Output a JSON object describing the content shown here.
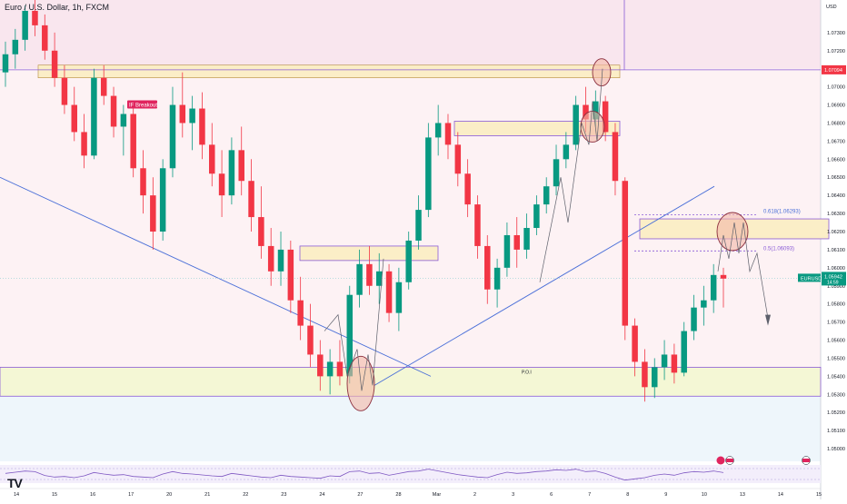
{
  "chart_data": {
    "type": "candlestick",
    "title": "Euro / U.S. Dollar, 1h, FXCM",
    "currency": "USD",
    "symbol_tag": "EURUSD",
    "current_price": "1.05942",
    "countdown": "14:59",
    "level_tag": "1.07094",
    "y_ticks": [
      "1.07300",
      "1.07200",
      "1.07100",
      "1.07000",
      "1.06900",
      "1.06800",
      "1.06700",
      "1.06600",
      "1.06500",
      "1.06400",
      "1.06300",
      "1.06200",
      "1.06100",
      "1.06000",
      "1.05900",
      "1.05800",
      "1.05700",
      "1.05600",
      "1.05500",
      "1.05400",
      "1.05300",
      "1.05200",
      "1.05100",
      "1.05000"
    ],
    "x_ticks": [
      "14",
      "15",
      "16",
      "17",
      "20",
      "21",
      "22",
      "23",
      "24",
      "27",
      "28",
      "Mar",
      "2",
      "3",
      "6",
      "7",
      "8",
      "9",
      "10",
      "13",
      "14",
      "15"
    ],
    "ylim": [
      1.0493,
      1.0748
    ],
    "annotations": {
      "breakout": "IF Breakout",
      "poi": "P.O.I",
      "fib_618": "0.618(1.06293)",
      "fib_05": "0.5(1.06093)"
    },
    "candles": [
      [
        0,
        1.0708,
        1.0725,
        1.07,
        1.0718
      ],
      [
        1,
        1.0718,
        1.0732,
        1.071,
        1.0726
      ],
      [
        2,
        1.0726,
        1.0745,
        1.072,
        1.0742
      ],
      [
        3,
        1.0742,
        1.0748,
        1.0728,
        1.0734
      ],
      [
        4,
        1.0734,
        1.074,
        1.0715,
        1.072
      ],
      [
        5,
        1.072,
        1.073,
        1.07,
        1.0705
      ],
      [
        6,
        1.0705,
        1.0712,
        1.0685,
        1.069
      ],
      [
        7,
        1.069,
        1.07,
        1.067,
        1.0675
      ],
      [
        8,
        1.0675,
        1.0685,
        1.0655,
        1.0662
      ],
      [
        9,
        1.0662,
        1.071,
        1.066,
        1.0705
      ],
      [
        10,
        1.0705,
        1.0712,
        1.069,
        1.0695
      ],
      [
        11,
        1.0695,
        1.07,
        1.0672,
        1.0678
      ],
      [
        12,
        1.0678,
        1.069,
        1.0662,
        1.0685
      ],
      [
        13,
        1.0685,
        1.0692,
        1.065,
        1.0655
      ],
      [
        14,
        1.0655,
        1.0665,
        1.063,
        1.064
      ],
      [
        15,
        1.064,
        1.065,
        1.061,
        1.062
      ],
      [
        16,
        1.062,
        1.066,
        1.0615,
        1.0655
      ],
      [
        17,
        1.0655,
        1.07,
        1.065,
        1.069
      ],
      [
        18,
        1.069,
        1.0708,
        1.0672,
        1.068
      ],
      [
        19,
        1.068,
        1.0695,
        1.0665,
        1.0688
      ],
      [
        20,
        1.0688,
        1.0697,
        1.066,
        1.0668
      ],
      [
        21,
        1.0668,
        1.068,
        1.0645,
        1.0652
      ],
      [
        22,
        1.0652,
        1.0665,
        1.0628,
        1.064
      ],
      [
        23,
        1.064,
        1.0672,
        1.0635,
        1.0665
      ],
      [
        24,
        1.0665,
        1.0678,
        1.064,
        1.0648
      ],
      [
        25,
        1.0648,
        1.066,
        1.062,
        1.0628
      ],
      [
        26,
        1.0628,
        1.0645,
        1.0605,
        1.0612
      ],
      [
        27,
        1.0612,
        1.0622,
        1.059,
        1.0598
      ],
      [
        28,
        1.0598,
        1.062,
        1.059,
        1.061
      ],
      [
        29,
        1.061,
        1.0615,
        1.0575,
        1.0582
      ],
      [
        30,
        1.0582,
        1.0595,
        1.056,
        1.0568
      ],
      [
        31,
        1.0568,
        1.058,
        1.0545,
        1.0552
      ],
      [
        32,
        1.0552,
        1.056,
        1.0532,
        1.054
      ],
      [
        33,
        1.054,
        1.0555,
        1.053,
        1.0548
      ],
      [
        34,
        1.0548,
        1.056,
        1.0535,
        1.054
      ],
      [
        35,
        1.054,
        1.059,
        1.0536,
        1.0585
      ],
      [
        36,
        1.0585,
        1.061,
        1.0578,
        1.0602
      ],
      [
        37,
        1.0602,
        1.0612,
        1.0585,
        1.059
      ],
      [
        38,
        1.059,
        1.0608,
        1.058,
        1.0598
      ],
      [
        39,
        1.0598,
        1.0602,
        1.057,
        1.0575
      ],
      [
        40,
        1.0575,
        1.06,
        1.0565,
        1.0592
      ],
      [
        41,
        1.0592,
        1.062,
        1.0588,
        1.0615
      ],
      [
        42,
        1.0615,
        1.064,
        1.061,
        1.0632
      ],
      [
        43,
        1.0632,
        1.068,
        1.0628,
        1.0672
      ],
      [
        44,
        1.0672,
        1.069,
        1.0662,
        1.068
      ],
      [
        45,
        1.068,
        1.0685,
        1.066,
        1.0668
      ],
      [
        46,
        1.0668,
        1.0675,
        1.0645,
        1.0652
      ],
      [
        47,
        1.0652,
        1.066,
        1.0628,
        1.0635
      ],
      [
        48,
        1.0635,
        1.064,
        1.0605,
        1.0612
      ],
      [
        49,
        1.0612,
        1.0618,
        1.058,
        1.0588
      ],
      [
        50,
        1.0588,
        1.0605,
        1.0578,
        1.06
      ],
      [
        51,
        1.06,
        1.0625,
        1.0595,
        1.0618
      ],
      [
        52,
        1.0618,
        1.0628,
        1.06,
        1.061
      ],
      [
        53,
        1.061,
        1.063,
        1.0605,
        1.0622
      ],
      [
        54,
        1.0622,
        1.064,
        1.0618,
        1.0635
      ],
      [
        55,
        1.0635,
        1.065,
        1.063,
        1.0645
      ],
      [
        56,
        1.0645,
        1.0668,
        1.064,
        1.066
      ],
      [
        57,
        1.066,
        1.0675,
        1.0655,
        1.0668
      ],
      [
        58,
        1.0668,
        1.0695,
        1.0665,
        1.069
      ],
      [
        59,
        1.069,
        1.07,
        1.0675,
        1.0682
      ],
      [
        60,
        1.0682,
        1.0698,
        1.0678,
        1.0692
      ],
      [
        61,
        1.0692,
        1.0695,
        1.067,
        1.0675
      ],
      [
        62,
        1.0675,
        1.068,
        1.064,
        1.0648
      ],
      [
        63,
        1.0648,
        1.065,
        1.056,
        1.0568
      ],
      [
        64,
        1.0568,
        1.0572,
        1.054,
        1.0548
      ],
      [
        65,
        1.0548,
        1.0555,
        1.0526,
        1.0534
      ],
      [
        66,
        1.0534,
        1.055,
        1.0528,
        1.0545
      ],
      [
        67,
        1.0545,
        1.056,
        1.0538,
        1.0552
      ],
      [
        68,
        1.0552,
        1.0558,
        1.0536,
        1.0542
      ],
      [
        69,
        1.0542,
        1.057,
        1.054,
        1.0565
      ],
      [
        70,
        1.0565,
        1.0585,
        1.056,
        1.0578
      ],
      [
        71,
        1.0578,
        1.059,
        1.0568,
        1.0582
      ],
      [
        72,
        1.0582,
        1.0602,
        1.0575,
        1.0596
      ],
      [
        73,
        1.0596,
        1.06,
        1.0578,
        1.0594
      ]
    ],
    "rsi": [
      52,
      56,
      60,
      58,
      45,
      40,
      42,
      38,
      44,
      55,
      50,
      46,
      48,
      42,
      40,
      38,
      50,
      58,
      52,
      50,
      47,
      44,
      42,
      52,
      48,
      44,
      40,
      38,
      46,
      42,
      40,
      38,
      36,
      44,
      42,
      58,
      60,
      52,
      54,
      46,
      52,
      58,
      60,
      66,
      60,
      54,
      48,
      44,
      40,
      38,
      48,
      56,
      52,
      54,
      58,
      60,
      64,
      62,
      66,
      58,
      60,
      52,
      40,
      30,
      34,
      38,
      46,
      50,
      46,
      54,
      58,
      56,
      60,
      55
    ]
  }
}
